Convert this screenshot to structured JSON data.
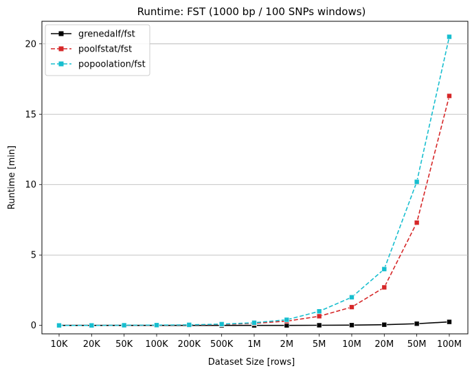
{
  "chart_data": {
    "type": "line",
    "title": "Runtime:  FST (1000 bp / 100 SNPs windows)",
    "xlabel": "Dataset Size  [rows]",
    "ylabel": "Runtime  [min]",
    "categories": [
      "10K",
      "20K",
      "50K",
      "100K",
      "200K",
      "500K",
      "1M",
      "2M",
      "5M",
      "10M",
      "20M",
      "50M",
      "100M"
    ],
    "ylim": [
      -0.6,
      21.6
    ],
    "yticks": [
      0,
      5,
      10,
      15,
      20
    ],
    "grid": "horizontal",
    "legend_position": "top-left",
    "series": [
      {
        "name": "grenedalf/fst",
        "color": "#000000",
        "line_style": "solid",
        "marker": "square",
        "values": [
          0.0,
          0.0,
          0.0,
          0.0,
          0.0,
          0.0,
          0.0,
          0.0,
          0.01,
          0.02,
          0.05,
          0.12,
          0.25
        ]
      },
      {
        "name": "poolfstat/fst",
        "color": "#d62728",
        "line_style": "dashed",
        "marker": "square",
        "values": [
          0.0,
          0.0,
          0.0,
          0.01,
          0.03,
          0.07,
          0.15,
          0.3,
          0.65,
          1.3,
          2.7,
          7.3,
          16.3
        ]
      },
      {
        "name": "popoolation/fst",
        "color": "#17becf",
        "line_style": "dashed",
        "marker": "square",
        "values": [
          0.0,
          0.0,
          0.01,
          0.02,
          0.04,
          0.09,
          0.19,
          0.4,
          1.0,
          2.0,
          4.0,
          10.2,
          20.5
        ]
      }
    ]
  }
}
